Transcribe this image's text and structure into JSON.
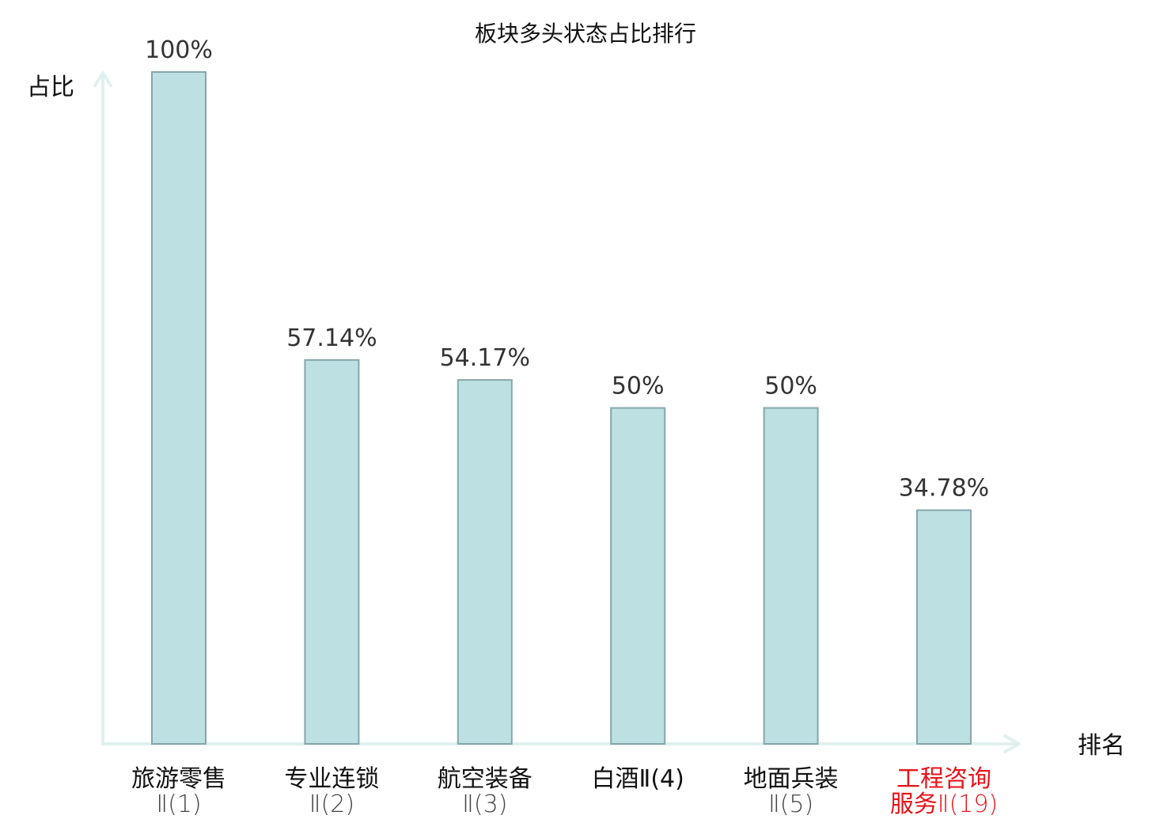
{
  "chart_data": {
    "type": "bar",
    "title": "板块多头状态占比排行",
    "ylabel": "占比",
    "xlabel": "排名",
    "categories": [
      [
        "旅游零售",
        "Ⅱ(1)"
      ],
      [
        "专业连锁",
        "Ⅱ(2)"
      ],
      [
        "航空装备",
        "Ⅱ(3)"
      ],
      [
        "白酒Ⅱ(4)"
      ],
      [
        "地面兵装",
        "Ⅱ(5)"
      ],
      [
        "工程咨询",
        "服务Ⅱ(19)"
      ]
    ],
    "values": [
      100,
      57.14,
      54.17,
      50,
      50,
      34.78
    ],
    "value_labels": [
      "100%",
      "57.14%",
      "54.17%",
      "50%",
      "50%",
      "34.78%"
    ],
    "highlight_index": 5,
    "ylim": [
      0,
      100
    ],
    "grid": false,
    "legend": "none",
    "colors": {
      "bar_fill": "#bde0e2",
      "bar_stroke": "#85a7ab",
      "axis": "#dff1ee",
      "highlight_text": "#e8131a"
    }
  }
}
